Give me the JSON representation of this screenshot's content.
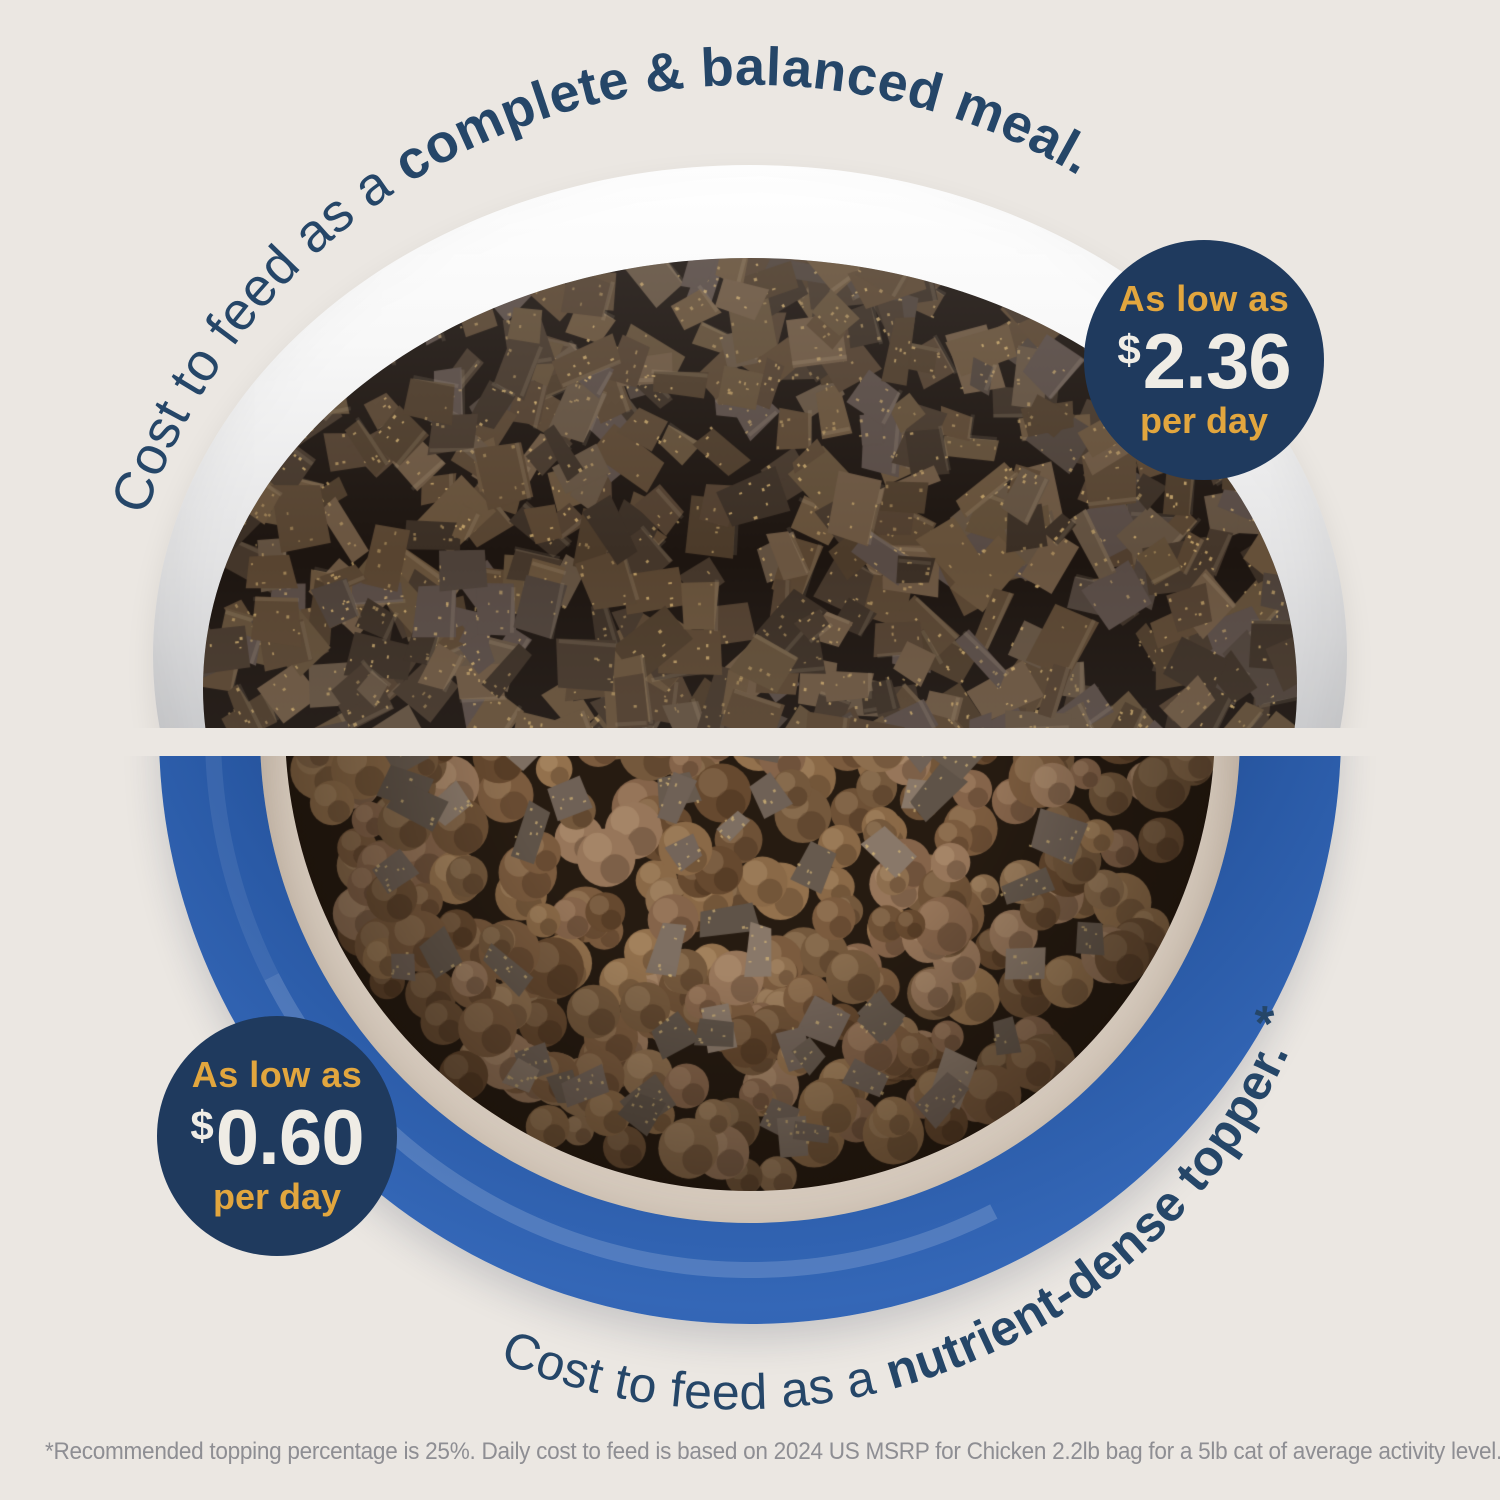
{
  "colors": {
    "background": "#EBE7E2",
    "navy": "#254668",
    "badge_bg": "#1F3A5E",
    "gold": "#E2A63E",
    "cream": "#EFECE5",
    "blue_bowl": "#2A5AA6",
    "gray_bowl": "#C3C4C7",
    "footnote_gray": "#8E8E93"
  },
  "top_section": {
    "photo": "gray-bowl-of-freeze-dried-raw-morsels",
    "curved_text": {
      "regular": "Cost to feed as a ",
      "bold": "complete & balanced meal."
    },
    "badge": {
      "intro": "As low as",
      "currency": "$",
      "amount": "2.36",
      "unit": "per day"
    }
  },
  "bottom_section": {
    "photo": "blue-bowl-of-kibble-topped-with-freeze-dried-morsels",
    "curved_text": {
      "regular": "Cost to feed as a ",
      "bold": "nutrient-dense topper.",
      "footnote_marker": " *"
    },
    "badge": {
      "intro": "As low as",
      "currency": "$",
      "amount": "0.60",
      "unit": "per day"
    }
  },
  "footnote": "*Recommended topping percentage is 25%. Daily cost to feed is based on 2024 US MSRP for Chicken 2.2lb bag for a 5lb cat of average activity level."
}
